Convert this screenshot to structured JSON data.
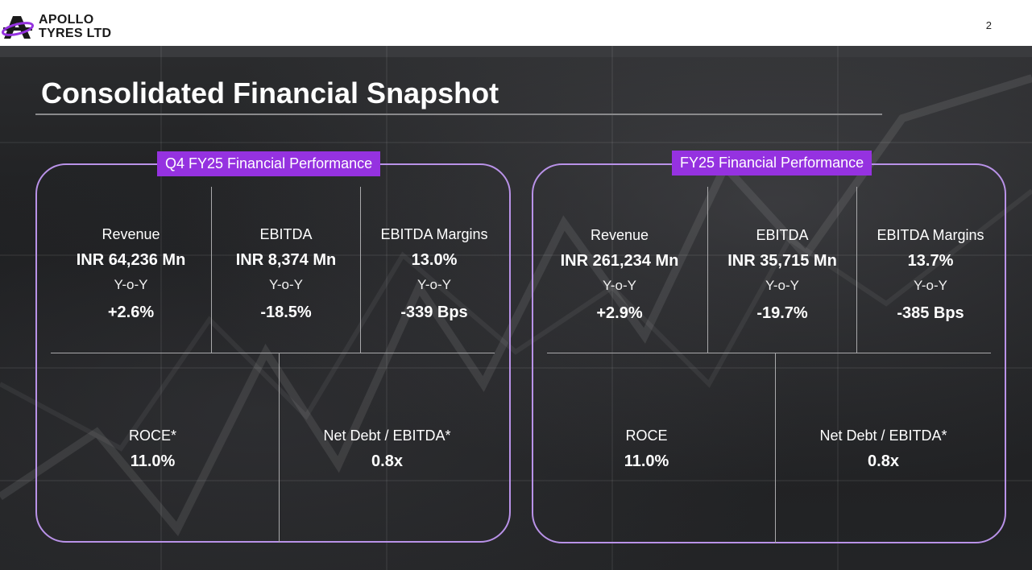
{
  "header": {
    "logo_line1": "APOLLO",
    "logo_line2": "TYRES LTD",
    "page_number": "2",
    "brand_color": "#9532e0"
  },
  "title": "Consolidated Financial Snapshot",
  "panels": [
    {
      "label": "Q4 FY25 Financial Performance",
      "top_metrics": [
        {
          "label": "Revenue",
          "value": "INR 64,236 Mn",
          "yoy_label": "Y-o-Y",
          "yoy": "+2.6%"
        },
        {
          "label": "EBITDA",
          "value": "INR 8,374 Mn",
          "yoy_label": "Y-o-Y",
          "yoy": "-18.5%"
        },
        {
          "label": "EBITDA Margins",
          "value": "13.0%",
          "yoy_label": "Y-o-Y",
          "yoy": "-339 Bps"
        }
      ],
      "bottom_metrics": [
        {
          "label": "ROCE*",
          "value": "11.0%"
        },
        {
          "label": "Net Debt / EBITDA*",
          "value": "0.8x"
        }
      ]
    },
    {
      "label": "FY25 Financial Performance",
      "top_metrics": [
        {
          "label": "Revenue",
          "value": "INR 261,234 Mn",
          "yoy_label": "Y-o-Y",
          "yoy": "+2.9%"
        },
        {
          "label": "EBITDA",
          "value": "INR 35,715 Mn",
          "yoy_label": "Y-o-Y",
          "yoy": "-19.7%"
        },
        {
          "label": "EBITDA Margins",
          "value": "13.7%",
          "yoy_label": "Y-o-Y",
          "yoy": "-385 Bps"
        }
      ],
      "bottom_metrics": [
        {
          "label": "ROCE",
          "value": "11.0%"
        },
        {
          "label": "Net Debt / EBITDA*",
          "value": "0.8x"
        }
      ]
    }
  ]
}
